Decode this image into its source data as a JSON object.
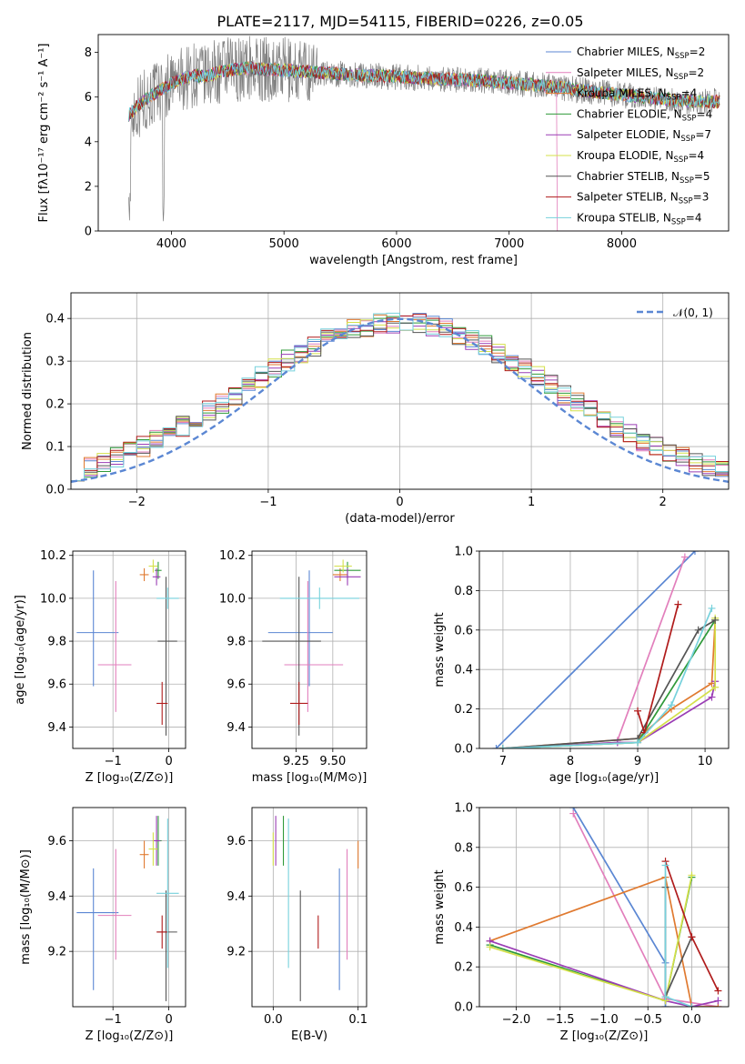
{
  "title": "PLATE=2117, MJD=54115, FIBERID=0226, z=0.05",
  "series": [
    {
      "name": "Chabrier MILES, N",
      "sub": "SSP",
      "suffix": "=2",
      "color": "#5b87d3",
      "age": 9.84,
      "age_err": [
        0.25,
        0.29
      ],
      "Z": -1.35,
      "Z_err": [
        0.3,
        0.45
      ],
      "mass": 9.34,
      "mass_err": [
        0.28,
        0.16
      ],
      "ebv": 0.078,
      "w_age": [
        [
          6.9,
          0.0
        ],
        [
          9.85,
          1.0
        ]
      ],
      "w_Z": [
        [
          -1.35,
          1.0
        ],
        [
          -0.3,
          0.22
        ],
        [
          -0.3,
          0.0
        ]
      ]
    },
    {
      "name": "Salpeter MILES, N",
      "sub": "SSP",
      "suffix": "=2",
      "color": "#e27fbc",
      "age": 9.69,
      "age_err": [
        0.22,
        0.39
      ],
      "Z": -0.95,
      "Z_err": [
        0.32,
        0.28
      ],
      "mass": 9.33,
      "mass_err": [
        0.16,
        0.24
      ],
      "ebv": 0.087,
      "w_age": [
        [
          8.7,
          0.04
        ],
        [
          9.7,
          0.97
        ]
      ],
      "w_Z": [
        [
          -1.35,
          0.97
        ],
        [
          -0.3,
          0.04
        ],
        [
          0.3,
          0.0
        ]
      ]
    },
    {
      "name": "Kroupa MILES, N",
      "sub": "SSP",
      "suffix": "=4",
      "color": "#e07a30",
      "age": 10.11,
      "age_err": [
        0.03,
        0.03
      ],
      "Z": -0.44,
      "Z_err": [
        0.08,
        0.08
      ],
      "mass": 9.55,
      "mass_err": [
        0.05,
        0.05
      ],
      "ebv": 0.1,
      "w_age": [
        [
          7.0,
          0.0
        ],
        [
          9.0,
          0.05
        ],
        [
          9.5,
          0.2
        ],
        [
          10.1,
          0.33
        ],
        [
          10.15,
          0.65
        ]
      ],
      "w_Z": [
        [
          -2.3,
          0.33
        ],
        [
          -0.3,
          0.65
        ],
        [
          0.0,
          0.0
        ],
        [
          0.3,
          0.0
        ]
      ]
    },
    {
      "name": "Chabrier ELODIE, N",
      "sub": "SSP",
      "suffix": "=4",
      "color": "#2f9a3a",
      "age": 10.13,
      "age_err": [
        0.04,
        0.04
      ],
      "Z": -0.19,
      "Z_err": [
        0.06,
        0.06
      ],
      "mass": 9.6,
      "mass_err": [
        0.09,
        0.09
      ],
      "ebv": 0.012,
      "w_age": [
        [
          7.0,
          0.0
        ],
        [
          9.0,
          0.03
        ],
        [
          10.15,
          0.65
        ]
      ],
      "w_Z": [
        [
          -2.3,
          0.31
        ],
        [
          -0.3,
          0.03
        ],
        [
          0.0,
          0.65
        ]
      ]
    },
    {
      "name": "Salpeter ELODIE, N",
      "sub": "SSP",
      "suffix": "=7",
      "color": "#9a3db5",
      "age": 10.1,
      "age_err": [
        0.04,
        0.04
      ],
      "Z": -0.22,
      "Z_err": [
        0.07,
        0.07
      ],
      "mass": 9.6,
      "mass_err": [
        0.09,
        0.09
      ],
      "ebv": 0.003,
      "w_age": [
        [
          7.0,
          0.0
        ],
        [
          8.7,
          0.03
        ],
        [
          9.0,
          0.03
        ],
        [
          10.1,
          0.26
        ],
        [
          10.15,
          0.34
        ]
      ],
      "w_Z": [
        [
          -2.3,
          0.33
        ],
        [
          -0.3,
          0.03
        ],
        [
          0.0,
          0.0
        ],
        [
          0.3,
          0.03
        ]
      ]
    },
    {
      "name": "Kroupa ELODIE, N",
      "sub": "SSP",
      "suffix": "=4",
      "color": "#d4e04a",
      "age": 10.15,
      "age_err": [
        0.03,
        0.03
      ],
      "Z": -0.28,
      "Z_err": [
        0.08,
        0.08
      ],
      "mass": 9.57,
      "mass_err": [
        0.06,
        0.06
      ],
      "ebv": 0.0,
      "w_age": [
        [
          7.0,
          0.0
        ],
        [
          9.0,
          0.03
        ],
        [
          10.15,
          0.31
        ],
        [
          10.15,
          0.66
        ]
      ],
      "w_Z": [
        [
          -2.3,
          0.3
        ],
        [
          -0.3,
          0.03
        ],
        [
          0.0,
          0.66
        ]
      ]
    },
    {
      "name": "Chabrier STELIB, N",
      "sub": "SSP",
      "suffix": "=5",
      "color": "#555555",
      "age": 9.8,
      "age_err": [
        0.44,
        0.3
      ],
      "Z": -0.05,
      "Z_err": [
        0.15,
        0.2
      ],
      "mass": 9.27,
      "mass_err": [
        0.25,
        0.15
      ],
      "ebv": 0.032,
      "w_age": [
        [
          7.0,
          0.0
        ],
        [
          9.0,
          0.05
        ],
        [
          9.9,
          0.6
        ],
        [
          10.15,
          0.65
        ]
      ],
      "w_Z": [
        [
          -0.3,
          0.6
        ],
        [
          -0.3,
          0.05
        ],
        [
          0.0,
          0.35
        ]
      ]
    },
    {
      "name": "Salpeter STELIB, N",
      "sub": "SSP",
      "suffix": "=3",
      "color": "#b01c1c",
      "age": 9.51,
      "age_err": [
        0.1,
        0.1
      ],
      "Z": -0.12,
      "Z_err": [
        0.1,
        0.1
      ],
      "mass": 9.27,
      "mass_err": [
        0.06,
        0.06
      ],
      "ebv": 0.053,
      "w_age": [
        [
          9.0,
          0.19
        ],
        [
          9.1,
          0.08
        ],
        [
          9.6,
          0.73
        ]
      ],
      "w_Z": [
        [
          -0.3,
          0.73
        ],
        [
          0.0,
          0.35
        ],
        [
          0.3,
          0.08
        ]
      ]
    },
    {
      "name": "Kroupa STELIB, N",
      "sub": "SSP",
      "suffix": "=4",
      "color": "#76d1dc",
      "age": 10.0,
      "age_err": [
        0.05,
        0.05
      ],
      "Z": -0.02,
      "Z_err": [
        0.2,
        0.2
      ],
      "mass": 9.41,
      "mass_err": [
        0.27,
        0.27
      ],
      "ebv": 0.018,
      "w_age": [
        [
          7.0,
          0.0
        ],
        [
          9.0,
          0.03
        ],
        [
          9.5,
          0.22
        ],
        [
          10.1,
          0.71
        ]
      ],
      "w_Z": [
        [
          -0.3,
          0.71
        ],
        [
          -0.3,
          0.05
        ],
        [
          0.0,
          0.0
        ]
      ]
    }
  ],
  "panels": {
    "spectrum": {
      "ylabel": "Flux [fλ10⁻¹⁷ erg cm⁻² s⁻¹ A⁻¹]",
      "xlabel": "wavelength [Angstrom, rest frame]",
      "xlim": [
        3350,
        8950
      ],
      "ylim": [
        0,
        8.8
      ],
      "xticks": [
        4000,
        5000,
        6000,
        7000,
        8000
      ],
      "yticks": [
        0,
        2,
        4,
        6,
        8
      ],
      "data_color": "#808080"
    },
    "residuals": {
      "ylabel": "Normed distribution",
      "xlabel": "(data-model)/error",
      "xlim": [
        -2.5,
        2.5
      ],
      "ylim": [
        0,
        0.46
      ],
      "xticks": [
        -2,
        -1,
        0,
        1,
        2
      ],
      "xtick_labels": [
        "−2",
        "−1",
        "0",
        "1",
        "2"
      ],
      "yticks": [
        0.0,
        0.1,
        0.2,
        0.3,
        0.4
      ],
      "ytick_labels": [
        "0.0",
        "0.1",
        "0.2",
        "0.3",
        "0.4"
      ],
      "normal_label": "𝒩(0, 1)",
      "normal_color": "#5b87d3",
      "bin_width": 0.1
    },
    "z_age": {
      "ylabel": "age  [log₁₀(age/yr)]",
      "xlabel": "Z [log₁₀(Z/Z⊙)]",
      "xlim": [
        -1.72,
        0.3
      ],
      "ylim": [
        9.3,
        10.22
      ],
      "xticks": [
        -1,
        0
      ],
      "xtick_labels": [
        "−1",
        "0"
      ],
      "yticks": [
        9.4,
        9.6,
        9.8,
        10.0,
        10.2
      ],
      "ytick_labels": [
        "9.4",
        "9.6",
        "9.8",
        "10.0",
        "10.2"
      ]
    },
    "mass_age": {
      "xlabel": "mass [log₁₀(M/M⊙)]",
      "xlim": [
        8.95,
        9.73
      ],
      "ylim": [
        9.3,
        10.22
      ],
      "xticks": [
        9.25,
        9.5
      ],
      "xtick_labels": [
        "9.25",
        "9.50"
      ],
      "yticks": [
        9.4,
        9.6,
        9.8,
        10.0,
        10.2
      ],
      "ytick_labels": [
        "9.4",
        "9.6",
        "9.8",
        "10.0",
        "10.2"
      ]
    },
    "age_weight": {
      "ylabel": "mass weight",
      "xlabel": "age  [log₁₀(age/yr)]",
      "xlim": [
        6.65,
        10.35
      ],
      "ylim": [
        0,
        1.0
      ],
      "xticks": [
        7,
        8,
        9,
        10
      ],
      "xtick_labels": [
        "7",
        "8",
        "9",
        "10"
      ],
      "yticks": [
        0.0,
        0.2,
        0.4,
        0.6,
        0.8,
        1.0
      ],
      "ytick_labels": [
        "0.0",
        "0.2",
        "0.4",
        "0.6",
        "0.8",
        "1.0"
      ]
    },
    "z_mass": {
      "ylabel": "mass [log₁₀(M/M⊙)]",
      "xlabel": "Z [log₁₀(Z/Z⊙)]",
      "xlim": [
        -1.72,
        0.3
      ],
      "ylim": [
        9.0,
        9.72
      ],
      "xticks": [
        -1,
        0
      ],
      "xtick_labels": [
        "−1",
        "0"
      ],
      "yticks": [
        9.2,
        9.4,
        9.6
      ],
      "ytick_labels": [
        "9.2",
        "9.4",
        "9.6"
      ]
    },
    "ebv_mass": {
      "xlabel": "E(B-V)",
      "xlim": [
        -0.025,
        0.11
      ],
      "ylim": [
        9.0,
        9.72
      ],
      "xticks": [
        0.0,
        0.1
      ],
      "xtick_labels": [
        "0.0",
        "0.1"
      ],
      "yticks": [
        9.2,
        9.4,
        9.6
      ],
      "ytick_labels": [
        "9.2",
        "9.4",
        "9.6"
      ]
    },
    "z_weight": {
      "ylabel": "mass weight",
      "xlabel": "Z [log₁₀(Z/Z⊙)]",
      "xlim": [
        -2.42,
        0.42
      ],
      "ylim": [
        0,
        1.0
      ],
      "xticks": [
        -2.0,
        -1.5,
        -1.0,
        -0.5,
        0.0
      ],
      "xtick_labels": [
        "−2.0",
        "−1.5",
        "−1.0",
        "−0.5",
        "0.0"
      ],
      "yticks": [
        0.0,
        0.2,
        0.4,
        0.6,
        0.8,
        1.0
      ],
      "ytick_labels": [
        "0.0",
        "0.2",
        "0.4",
        "0.6",
        "0.8",
        "1.0"
      ]
    }
  },
  "chart_data": [
    {
      "type": "line",
      "title": "PLATE=2117, MJD=54115, FIBERID=0226, z=0.05",
      "xlabel": "wavelength [Angstrom, rest frame]",
      "ylabel": "Flux [fλ10⁻¹⁷ erg cm⁻² s⁻¹ A⁻¹]",
      "xlim": [
        3350,
        8950
      ],
      "ylim": [
        0,
        8.8
      ],
      "legend": "top-right",
      "grid": false,
      "continuum": {
        "x": [
          3620,
          3700,
          3800,
          3900,
          4000,
          4100,
          4200,
          4300,
          4400,
          4500,
          4700,
          5000,
          5300,
          5600,
          6000,
          6500,
          6800,
          7100,
          7300,
          7500,
          7800,
          8000,
          8200,
          8400,
          8600,
          8800
        ],
        "y": [
          5.2,
          5.6,
          6.0,
          6.3,
          6.6,
          6.8,
          7.0,
          6.9,
          7.1,
          7.2,
          7.3,
          7.2,
          7.1,
          7.0,
          6.9,
          6.8,
          6.7,
          6.6,
          6.5,
          6.4,
          6.2,
          6.1,
          6.0,
          5.9,
          5.8,
          5.8
        ]
      }
    },
    {
      "type": "bar",
      "xlabel": "(data-model)/error",
      "ylabel": "Normed distribution",
      "xlim": [
        -2.5,
        2.5
      ],
      "ylim": [
        0,
        0.46
      ],
      "grid": true,
      "legend": "top-right",
      "normal": {
        "mean": 0,
        "sigma": 1
      }
    }
  ]
}
